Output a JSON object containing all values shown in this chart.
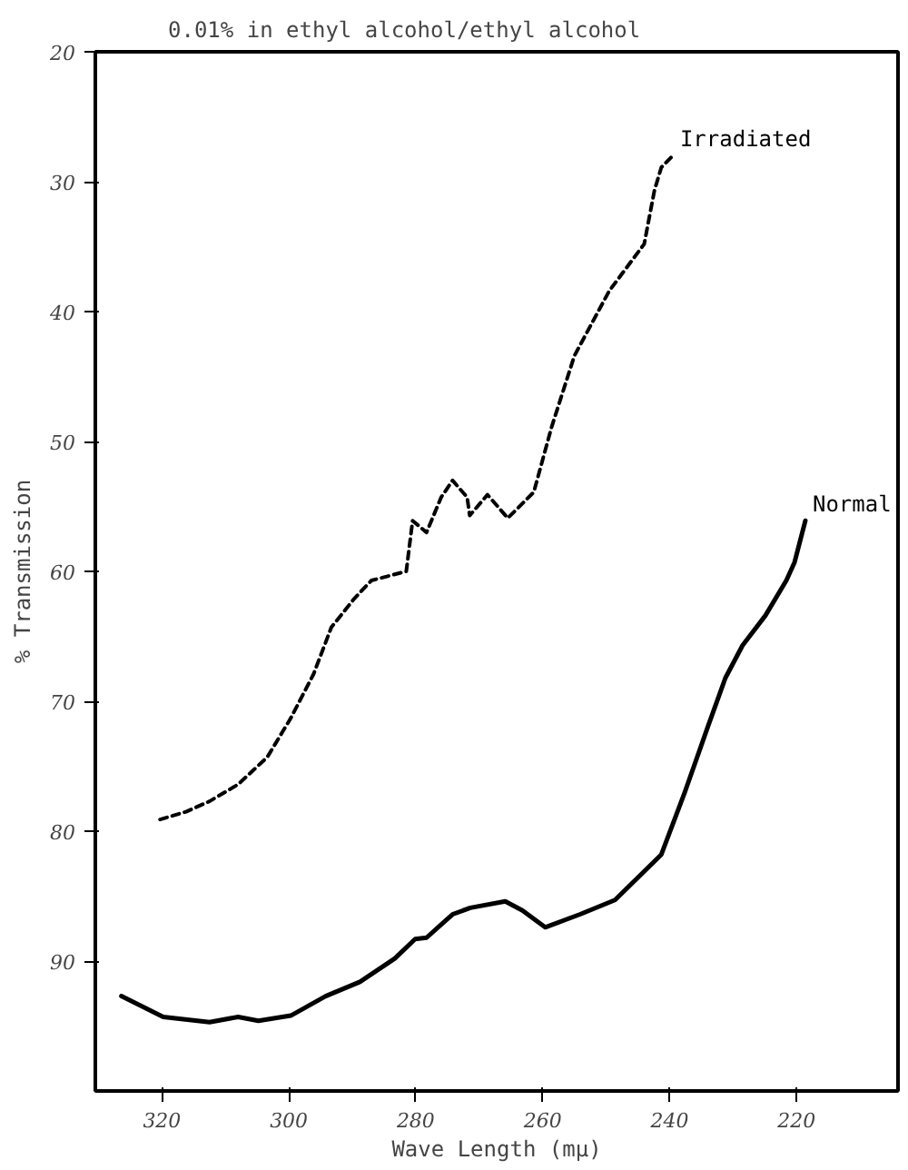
{
  "chart_data": {
    "type": "line",
    "title": "0.01% in ethyl alcohol/ethyl alcohol",
    "xlabel": "Wave Length (mμ)",
    "ylabel": "% Transmission",
    "xlim": [
      330.5,
      204
    ],
    "xticks": [
      320,
      300,
      280,
      260,
      240,
      220
    ],
    "ylim": [
      100,
      20
    ],
    "yticks": [
      20,
      30,
      40,
      50,
      60,
      70,
      80,
      90
    ],
    "grid": false,
    "marker": "none",
    "series": [
      {
        "name": "Irradiated",
        "color": "#000000",
        "line_style": "dashed",
        "x": [
          320.3,
          316.2,
          312.5,
          308,
          303.4,
          299.7,
          296.1,
          293.3,
          289.7,
          287,
          281.5,
          280.5,
          278.3,
          276,
          274.2,
          271.9,
          271.5,
          268.7,
          265.5,
          261.4,
          258.6,
          255,
          249.5,
          244,
          242.4,
          241.3,
          239.5
        ],
        "values": [
          79.1,
          78.5,
          77.7,
          76.4,
          74.3,
          71.3,
          67.9,
          64.3,
          62.1,
          60.7,
          60,
          56.1,
          57,
          54.3,
          53,
          54.3,
          55.7,
          54.1,
          55.9,
          53.9,
          48.9,
          43.4,
          38.4,
          34.8,
          30.7,
          28.9,
          28
        ]
      },
      {
        "name": "Normal",
        "color": "#000000",
        "line_style": "solid",
        "x": [
          326.4,
          319.8,
          312.5,
          308,
          304.8,
          299.7,
          294.2,
          288.8,
          283.3,
          280.1,
          278.3,
          274.2,
          271.4,
          265.9,
          263.2,
          259.6,
          254.1,
          248.6,
          241.3,
          237.6,
          234,
          231.2,
          228.5,
          224.9,
          221.6,
          220.3,
          218.6
        ],
        "values": [
          92.7,
          94.3,
          94.7,
          94.3,
          94.6,
          94.2,
          92.7,
          91.6,
          89.8,
          88.3,
          88.2,
          86.4,
          85.9,
          85.4,
          86.1,
          87.4,
          86.4,
          85.3,
          81.8,
          77,
          72,
          68.2,
          65.7,
          63.4,
          60.7,
          59.3,
          56.1
        ]
      }
    ]
  }
}
